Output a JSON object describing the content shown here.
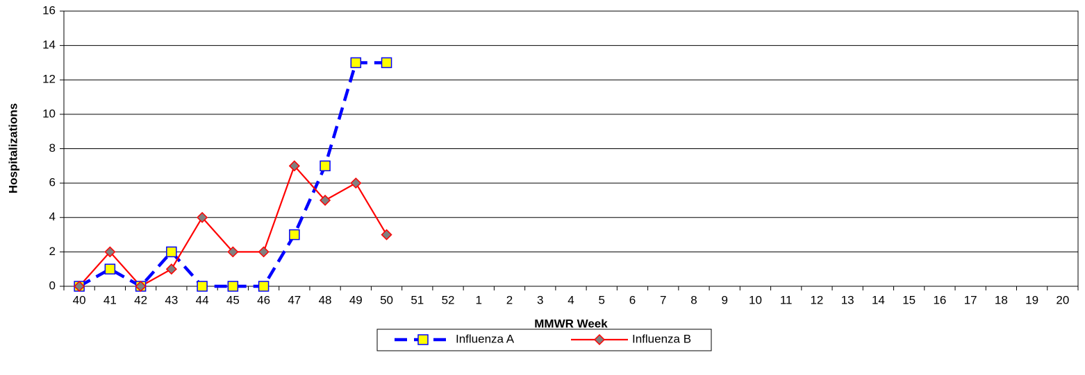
{
  "chart_data": {
    "type": "line",
    "x_label": "MMWR Week",
    "y_label": "Hospitalizations",
    "categories": [
      "40",
      "41",
      "42",
      "43",
      "44",
      "45",
      "46",
      "47",
      "48",
      "49",
      "50",
      "51",
      "52",
      "1",
      "2",
      "3",
      "4",
      "5",
      "6",
      "7",
      "8",
      "9",
      "10",
      "11",
      "12",
      "13",
      "14",
      "15",
      "16",
      "17",
      "18",
      "19",
      "20"
    ],
    "series": [
      {
        "name": "Influenza A",
        "color": "#0000ff",
        "line_style": "dashed",
        "marker": "square",
        "marker_color": "#ffff00",
        "values": [
          0,
          1,
          0,
          2,
          0,
          0,
          0,
          3,
          7,
          13,
          13,
          null,
          null,
          null,
          null,
          null,
          null,
          null,
          null,
          null,
          null,
          null,
          null,
          null,
          null,
          null,
          null,
          null,
          null,
          null,
          null,
          null,
          null
        ]
      },
      {
        "name": "Influenza B",
        "color": "#ff0000",
        "line_style": "solid",
        "marker": "diamond",
        "marker_color": "#808080",
        "values": [
          0,
          2,
          0,
          1,
          4,
          2,
          2,
          7,
          5,
          6,
          3,
          null,
          null,
          null,
          null,
          null,
          null,
          null,
          null,
          null,
          null,
          null,
          null,
          null,
          null,
          null,
          null,
          null,
          null,
          null,
          null,
          null,
          null
        ]
      }
    ],
    "ylim": [
      0,
      16
    ],
    "yticks": [
      0,
      2,
      4,
      6,
      8,
      10,
      12,
      14,
      16
    ],
    "grid": true,
    "legend": "bottom"
  }
}
